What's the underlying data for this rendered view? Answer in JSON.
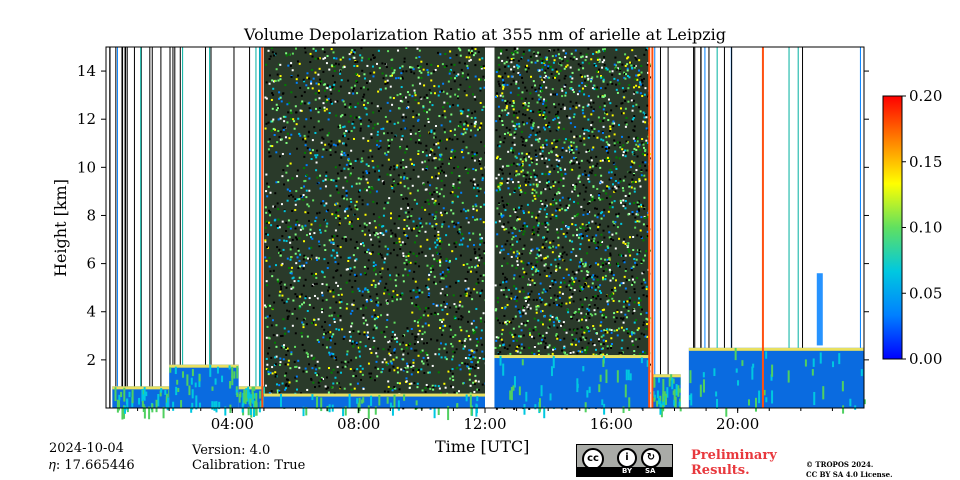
{
  "chart_data": {
    "type": "heatmap",
    "title": "Volume Depolarization Ratio at 355 nm of arielle at Leipzig",
    "xlabel": "Time [UTC]",
    "ylabel": "Height [km]",
    "x_ticks": [
      "04:00",
      "08:00",
      "12:00",
      "16:00",
      "20:00"
    ],
    "x_tick_hours": [
      4,
      8,
      12,
      16,
      20
    ],
    "x_range_hours": [
      0,
      24
    ],
    "y_ticks": [
      "2",
      "4",
      "6",
      "8",
      "10",
      "12",
      "14"
    ],
    "y_tick_values": [
      2,
      4,
      6,
      8,
      10,
      12,
      14
    ],
    "y_range_km": [
      0,
      15
    ],
    "colorbar": {
      "ticks": [
        "0.00",
        "0.05",
        "0.10",
        "0.15",
        "0.20"
      ],
      "tick_values": [
        0,
        0.05,
        0.1,
        0.15,
        0.2
      ],
      "range": [
        0,
        0.2
      ],
      "colormap": "jet",
      "colors": [
        "#0000ff",
        "#0080ff",
        "#00c8e0",
        "#60e060",
        "#ffff00",
        "#ff8000",
        "#ff0000"
      ]
    },
    "noise_segments_hours": [
      [
        5.0,
        12.0
      ],
      [
        12.3,
        17.2
      ]
    ],
    "data_gaps_hours": [
      [
        12.0,
        12.25
      ],
      [
        18.2,
        18.45
      ]
    ],
    "boundary_layer_top_km": [
      {
        "from": 0.2,
        "to": 2.0,
        "top": 0.9
      },
      {
        "from": 2.0,
        "to": 4.2,
        "top": 1.8
      },
      {
        "from": 4.2,
        "to": 5.0,
        "top": 0.9
      },
      {
        "from": 5.0,
        "to": 12.0,
        "top": 0.6
      },
      {
        "from": 12.3,
        "to": 17.2,
        "top": 2.2
      },
      {
        "from": 17.3,
        "to": 18.2,
        "top": 1.4
      },
      {
        "from": 18.45,
        "to": 24.0,
        "top": 2.5
      }
    ],
    "high_depol_columns_hours": [
      4.95,
      17.2,
      17.3,
      20.8
    ],
    "aerosol_plume": {
      "hour": 22.6,
      "bottom_km": 2.6,
      "top_km": 5.6
    }
  },
  "footer": {
    "date": "2024-10-04",
    "eta": "𝜂: 17.665446",
    "version": "Version: 4.0",
    "calibration": "Calibration: True",
    "license_logo": {
      "by": "BY",
      "sa": "SA"
    },
    "preliminary": "Preliminary Results.",
    "copyright_line1": "© TROPOS 2024.",
    "copyright_line2": "CC BY SA 4.0 License."
  }
}
